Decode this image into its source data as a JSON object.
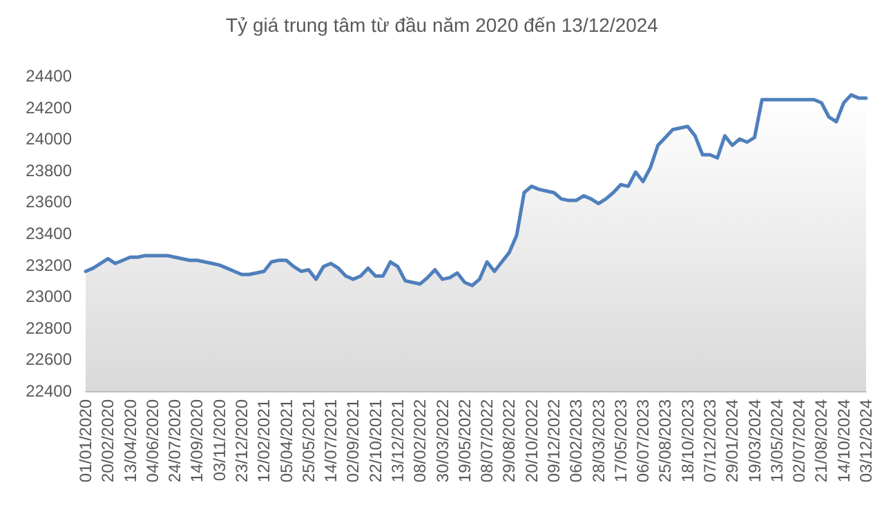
{
  "chart_data": {
    "type": "area",
    "title": "Tỷ giá trung tâm từ đầu năm 2020 đến 13/12/2024",
    "categories": [
      "01/01/2020",
      null,
      null,
      "20/02/2020",
      null,
      null,
      "13/04/2020",
      null,
      null,
      "04/06/2020",
      null,
      null,
      "24/07/2020",
      null,
      null,
      "14/09/2020",
      null,
      null,
      "03/11/2020",
      null,
      null,
      "23/12/2020",
      null,
      null,
      "12/02/2021",
      null,
      null,
      "05/04/2021",
      null,
      null,
      "25/05/2021",
      null,
      null,
      "14/07/2021",
      null,
      null,
      "02/09/2021",
      null,
      null,
      "22/10/2021",
      null,
      null,
      "13/12/2021",
      null,
      null,
      "08/02/2022",
      null,
      null,
      "30/03/2022",
      null,
      null,
      "19/05/2022",
      null,
      null,
      "08/07/2022",
      null,
      null,
      "29/08/2022",
      null,
      null,
      "20/10/2022",
      null,
      null,
      "09/12/2022",
      null,
      null,
      "06/02/2023",
      null,
      null,
      "28/03/2023",
      null,
      null,
      "17/05/2023",
      null,
      null,
      "06/07/2023",
      null,
      null,
      "25/08/2023",
      null,
      null,
      "18/10/2023",
      null,
      null,
      "07/12/2023",
      null,
      null,
      "29/01/2024",
      null,
      null,
      "19/03/2024",
      null,
      null,
      "13/05/2024",
      null,
      null,
      "02/07/2024",
      null,
      null,
      "21/08/2024",
      null,
      null,
      "14/10/2024",
      null,
      null,
      "03/12/2024"
    ],
    "series": [
      {
        "color": "#4f7fbc",
        "values": [
          23160,
          23180,
          23210,
          23240,
          23210,
          23230,
          23250,
          23250,
          23260,
          23260,
          23260,
          23260,
          23250,
          23240,
          23230,
          23230,
          23220,
          23210,
          23200,
          23180,
          23160,
          23140,
          23140,
          23150,
          23160,
          23220,
          23230,
          23230,
          23190,
          23160,
          23170,
          23110,
          23190,
          23210,
          23180,
          23130,
          23110,
          23130,
          23180,
          23130,
          23130,
          23220,
          23190,
          23100,
          23090,
          23080,
          23120,
          23170,
          23110,
          23120,
          23150,
          23090,
          23070,
          23110,
          23220,
          23160,
          23220,
          23280,
          23390,
          23660,
          23700,
          23680,
          23670,
          23660,
          23620,
          23610,
          23610,
          23640,
          23620,
          23590,
          23620,
          23660,
          23710,
          23700,
          23790,
          23730,
          23820,
          23960,
          24010,
          24060,
          24070,
          24080,
          24020,
          23900,
          23900,
          23880,
          24020,
          23960,
          24000,
          23980,
          24010,
          24250,
          24250,
          24250,
          24250,
          24250,
          24250,
          24250,
          24250,
          24230,
          24140,
          24110,
          24230,
          24280,
          24260,
          24260
        ]
      }
    ],
    "ylim": [
      22400,
      24400
    ],
    "yticks": [
      22400,
      22600,
      22800,
      23000,
      23200,
      23400,
      23600,
      23800,
      24000,
      24200,
      24400
    ],
    "grid": false,
    "marker": "none",
    "line_style": "solid"
  }
}
